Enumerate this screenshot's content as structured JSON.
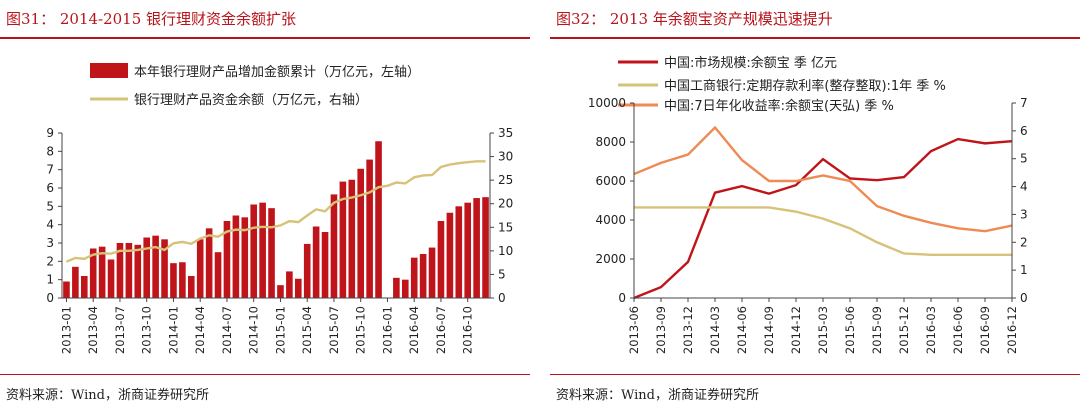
{
  "figure31": {
    "title": "图31：  2014-2015 银行理财资金余额扩张",
    "source": "资料来源：Wind，浙商证券研究所",
    "chart_data": {
      "type": "bar",
      "series": [
        {
          "name": "本年银行理财产品增加金额累计（万亿元，左轴）",
          "kind": "bar",
          "axis": "left",
          "color": "#c0141b",
          "values": [
            0.9,
            1.7,
            1.2,
            2.7,
            2.8,
            2.1,
            3.0,
            3.0,
            2.9,
            3.3,
            3.4,
            3.2,
            1.9,
            1.95,
            1.2,
            3.2,
            3.8,
            2.5,
            4.2,
            4.5,
            4.4,
            5.1,
            5.2,
            4.9,
            0.7,
            1.45,
            1.05,
            2.95,
            3.9,
            3.6,
            5.65,
            6.35,
            6.45,
            7.05,
            7.55,
            8.55,
            null,
            1.1,
            1.0,
            2.2,
            2.4,
            2.75,
            4.2,
            4.65,
            5.0,
            5.2,
            5.45,
            5.5
          ]
        },
        {
          "name": "银行理财产品资金余额（万亿元，右轴）",
          "kind": "line",
          "axis": "right",
          "color": "#d7c27a",
          "values": [
            7.7,
            8.5,
            8.3,
            9.2,
            9.5,
            9.4,
            10.0,
            10.0,
            10.2,
            10.5,
            10.8,
            10.2,
            11.6,
            11.9,
            11.5,
            12.6,
            13.3,
            13.0,
            14.1,
            14.5,
            14.4,
            14.9,
            15.1,
            15.0,
            15.4,
            16.3,
            16.1,
            17.5,
            18.8,
            18.4,
            20.2,
            21.0,
            21.3,
            21.8,
            22.4,
            23.5,
            23.8,
            24.5,
            24.3,
            25.6,
            26.0,
            26.1,
            27.8,
            28.3,
            28.6,
            28.8,
            29.0,
            29.0
          ]
        }
      ],
      "x_tick_labels": [
        "2013-01",
        "2013-04",
        "2013-07",
        "2013-10",
        "2014-01",
        "2014-04",
        "2014-07",
        "2014-10",
        "2015-01",
        "2015-04",
        "2015-07",
        "2015-10",
        "2016-01",
        "2016-04",
        "2016-07",
        "2016-10"
      ],
      "y_left": {
        "min": 0,
        "max": 9,
        "step": 1
      },
      "y_right": {
        "min": 0,
        "max": 35,
        "step": 5
      },
      "legend_position": "top-center"
    }
  },
  "figure32": {
    "title": "图32：  2013 年余额宝资产规模迅速提升",
    "source": "资料来源：Wind，浙商证券研究所",
    "chart_data": {
      "type": "line",
      "categories": [
        "2013-06",
        "2013-09",
        "2013-12",
        "2014-03",
        "2014-06",
        "2014-09",
        "2014-12",
        "2015-03",
        "2015-06",
        "2015-09",
        "2015-12",
        "2016-03",
        "2016-06",
        "2016-09",
        "2016-12"
      ],
      "series": [
        {
          "name": "中国:市场规模:余额宝 季 亿元",
          "axis": "left",
          "color": "#c0141b",
          "values": [
            0,
            560,
            1850,
            5400,
            5740,
            5350,
            5790,
            7120,
            6130,
            6040,
            6200,
            7530,
            8150,
            7930,
            8040
          ]
        },
        {
          "name": "中国工商银行:定期存款利率(整存整取):1年 季 %",
          "axis": "right",
          "color": "#d7c27a",
          "values": [
            3.25,
            3.25,
            3.25,
            3.25,
            3.25,
            3.25,
            3.1,
            2.85,
            2.5,
            2.0,
            1.6,
            1.55,
            1.55,
            1.55,
            1.55
          ]
        },
        {
          "name": "中国:7日年化收益率:余额宝(天弘) 季 %",
          "axis": "right",
          "color": "#ef8a52",
          "values": [
            4.45,
            4.85,
            5.15,
            6.12,
            4.95,
            4.2,
            4.2,
            4.4,
            4.2,
            3.3,
            2.95,
            2.7,
            2.5,
            2.4,
            2.6
          ]
        }
      ],
      "y_left": {
        "min": 0,
        "max": 10000,
        "step": 2000
      },
      "y_right": {
        "min": 0,
        "max": 7,
        "step": 1
      },
      "legend_position": "top-left"
    }
  }
}
